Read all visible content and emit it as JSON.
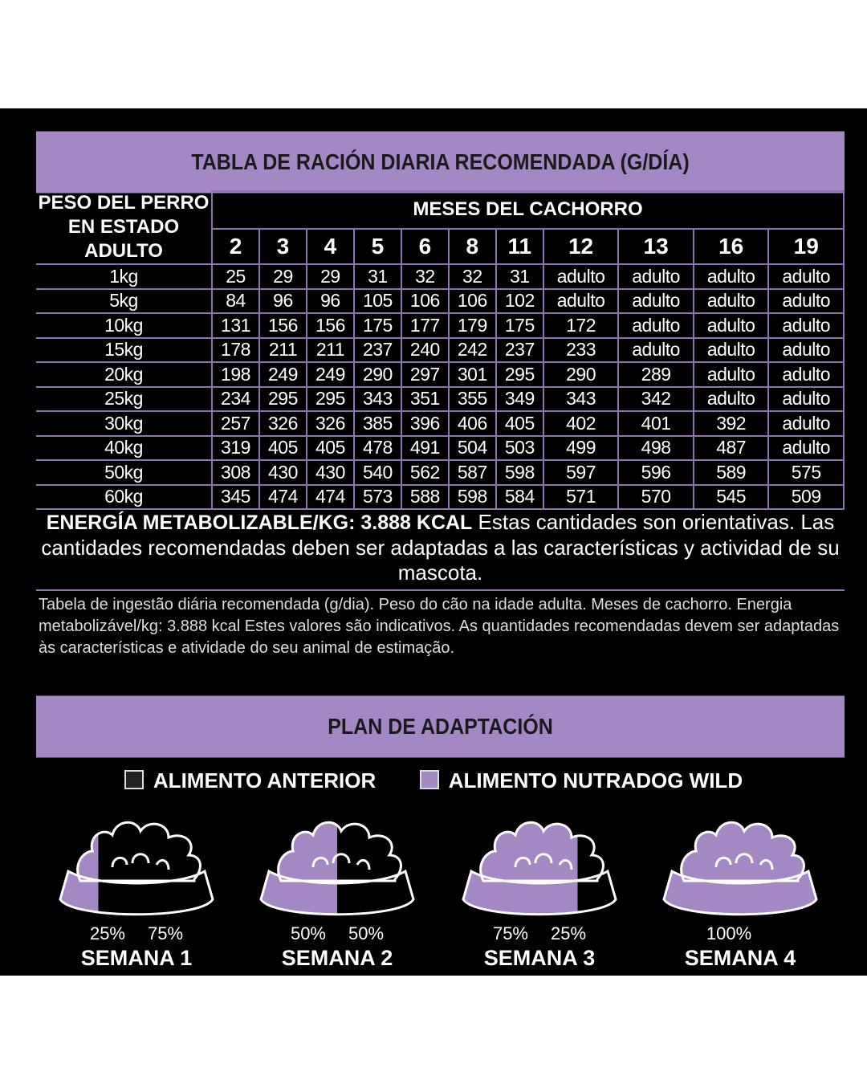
{
  "colors": {
    "accent": "#a488c3",
    "background": "#000000"
  },
  "table_title": "TABLA DE RACIÓN DIARIA RECOMENDADA (G/DÍA)",
  "weight_header_line1": "PESO DEL PERRO",
  "weight_header_line2": "EN ESTADO ADULTO",
  "months_header": "MESES DEL CACHORRO",
  "months": [
    "2",
    "3",
    "4",
    "5",
    "6",
    "8",
    "11",
    "12",
    "13",
    "16",
    "19"
  ],
  "rows": [
    {
      "weight": "1kg",
      "values": [
        "25",
        "29",
        "29",
        "31",
        "32",
        "32",
        "31",
        "adulto",
        "adulto",
        "adulto",
        "adulto"
      ]
    },
    {
      "weight": "5kg",
      "values": [
        "84",
        "96",
        "96",
        "105",
        "106",
        "106",
        "102",
        "adulto",
        "adulto",
        "adulto",
        "adulto"
      ]
    },
    {
      "weight": "10kg",
      "values": [
        "131",
        "156",
        "156",
        "175",
        "177",
        "179",
        "175",
        "172",
        "adulto",
        "adulto",
        "adulto"
      ]
    },
    {
      "weight": "15kg",
      "values": [
        "178",
        "211",
        "211",
        "237",
        "240",
        "242",
        "237",
        "233",
        "adulto",
        "adulto",
        "adulto"
      ]
    },
    {
      "weight": "20kg",
      "values": [
        "198",
        "249",
        "249",
        "290",
        "297",
        "301",
        "295",
        "290",
        "289",
        "adulto",
        "adulto"
      ]
    },
    {
      "weight": "25kg",
      "values": [
        "234",
        "295",
        "295",
        "343",
        "351",
        "355",
        "349",
        "343",
        "342",
        "adulto",
        "adulto"
      ]
    },
    {
      "weight": "30kg",
      "values": [
        "257",
        "326",
        "326",
        "385",
        "396",
        "406",
        "405",
        "402",
        "401",
        "392",
        "adulto"
      ]
    },
    {
      "weight": "40kg",
      "values": [
        "319",
        "405",
        "405",
        "478",
        "491",
        "504",
        "503",
        "499",
        "498",
        "487",
        "adulto"
      ]
    },
    {
      "weight": "50kg",
      "values": [
        "308",
        "430",
        "430",
        "540",
        "562",
        "587",
        "598",
        "597",
        "596",
        "589",
        "575"
      ]
    },
    {
      "weight": "60kg",
      "values": [
        "345",
        "474",
        "474",
        "573",
        "588",
        "598",
        "584",
        "571",
        "570",
        "545",
        "509"
      ]
    }
  ],
  "energy_label": "ENERGÍA METABOLIZABLE/KG: 3.888 KCAL",
  "energy_note": " Estas cantidades son orientativas. Las cantidades recomendadas deben ser adaptadas a las características y actividad de su mascota.",
  "portuguese_note": "Tabela de ingestão diária recomendada (g/dia). Peso do cão na idade adulta. Meses de cachorro. Energia metabolizável/kg: 3.888 kcal Estes valores são indicativos. As quantidades recomendadas devem ser adaptadas às características e atividade do seu animal de estimação.",
  "plan_title": "PLAN DE ADAPTACIÓN",
  "legend": {
    "previous": "ALIMENTO ANTERIOR",
    "new": "ALIMENTO NUTRADOG WILD"
  },
  "weeks": [
    {
      "label": "SEMANA 1",
      "new_pct": "25%",
      "prev_pct": "75%",
      "new_fraction": 0.25
    },
    {
      "label": "SEMANA 2",
      "new_pct": "50%",
      "prev_pct": "50%",
      "new_fraction": 0.5
    },
    {
      "label": "SEMANA 3",
      "new_pct": "75%",
      "prev_pct": "25%",
      "new_fraction": 0.75
    },
    {
      "label": "SEMANA 4",
      "new_pct": "100%",
      "prev_pct": "",
      "new_fraction": 1.0
    }
  ]
}
